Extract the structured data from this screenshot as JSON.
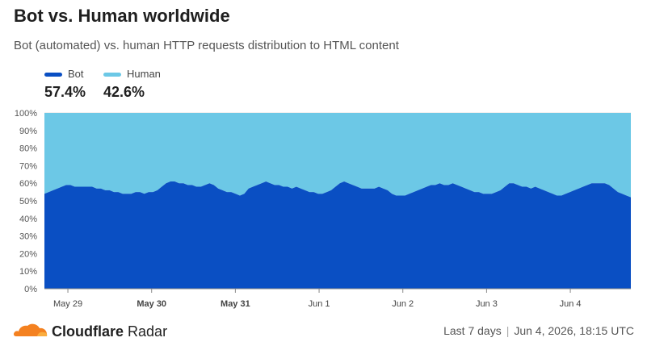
{
  "header": {
    "title": "Bot vs. Human worldwide",
    "subtitle": "Bot (automated) vs. human HTTP requests distribution to HTML content"
  },
  "legend": {
    "bot": {
      "label": "Bot",
      "value": "57.4%",
      "color": "#0a4fc3"
    },
    "human": {
      "label": "Human",
      "value": "42.6%",
      "color": "#6cc8e6"
    }
  },
  "footer": {
    "brand_main": "Cloudflare",
    "brand_sub": "Radar",
    "range": "Last 7 days",
    "timestamp": "Jun 4, 2026, 18:15 UTC"
  },
  "chart_data": {
    "type": "area",
    "stacked": true,
    "y_tick_labels": [
      "0%",
      "10%",
      "20%",
      "30%",
      "40%",
      "50%",
      "60%",
      "70%",
      "80%",
      "90%",
      "100%"
    ],
    "ylim": [
      0,
      100
    ],
    "x_tick_labels": [
      {
        "label": "May 29",
        "bold": false
      },
      {
        "label": "May 30",
        "bold": true
      },
      {
        "label": "May 31",
        "bold": true
      },
      {
        "label": "Jun 1",
        "bold": false
      },
      {
        "label": "Jun 2",
        "bold": false
      },
      {
        "label": "Jun 3",
        "bold": false
      },
      {
        "label": "Jun 4",
        "bold": false
      }
    ],
    "grid": true,
    "series": [
      {
        "name": "Bot",
        "color": "#0a4fc3",
        "values": [
          54,
          55,
          56,
          57,
          58,
          59,
          59,
          58,
          58,
          58,
          58,
          58,
          57,
          57,
          56,
          56,
          55,
          55,
          54,
          54,
          54,
          55,
          55,
          54,
          55,
          55,
          56,
          58,
          60,
          61,
          61,
          60,
          60,
          59,
          59,
          58,
          58,
          59,
          60,
          59,
          57,
          56,
          55,
          55,
          54,
          53,
          54,
          57,
          58,
          59,
          60,
          61,
          60,
          59,
          59,
          58,
          58,
          57,
          58,
          57,
          56,
          55,
          55,
          54,
          54,
          55,
          56,
          58,
          60,
          61,
          60,
          59,
          58,
          57,
          57,
          57,
          57,
          58,
          57,
          56,
          54,
          53,
          53,
          53,
          54,
          55,
          56,
          57,
          58,
          59,
          59,
          60,
          59,
          59,
          60,
          59,
          58,
          57,
          56,
          55,
          55,
          54,
          54,
          54,
          55,
          56,
          58,
          60,
          60,
          59,
          58,
          58,
          57,
          58,
          57,
          56,
          55,
          54,
          53,
          53,
          54,
          55,
          56,
          57,
          58,
          59,
          60,
          60,
          60,
          60,
          59,
          57,
          55,
          54,
          53,
          52
        ]
      },
      {
        "name": "Human",
        "color": "#6cc8e6",
        "values": [
          46,
          45,
          44,
          43,
          42,
          41,
          41,
          42,
          42,
          42,
          42,
          42,
          43,
          43,
          44,
          44,
          45,
          45,
          46,
          46,
          46,
          45,
          45,
          46,
          45,
          45,
          44,
          42,
          40,
          39,
          39,
          40,
          40,
          41,
          41,
          42,
          42,
          41,
          40,
          41,
          43,
          44,
          45,
          45,
          46,
          47,
          46,
          43,
          42,
          41,
          40,
          39,
          40,
          41,
          41,
          42,
          42,
          43,
          42,
          43,
          44,
          45,
          45,
          46,
          46,
          45,
          44,
          42,
          40,
          39,
          40,
          41,
          42,
          43,
          43,
          43,
          43,
          42,
          43,
          44,
          46,
          47,
          47,
          47,
          46,
          45,
          44,
          43,
          42,
          41,
          41,
          40,
          41,
          41,
          40,
          41,
          42,
          43,
          44,
          45,
          45,
          46,
          46,
          46,
          45,
          44,
          42,
          40,
          40,
          41,
          42,
          42,
          43,
          42,
          43,
          44,
          45,
          46,
          47,
          47,
          46,
          45,
          44,
          43,
          42,
          41,
          40,
          40,
          40,
          40,
          41,
          43,
          45,
          46,
          47,
          48
        ]
      }
    ]
  }
}
